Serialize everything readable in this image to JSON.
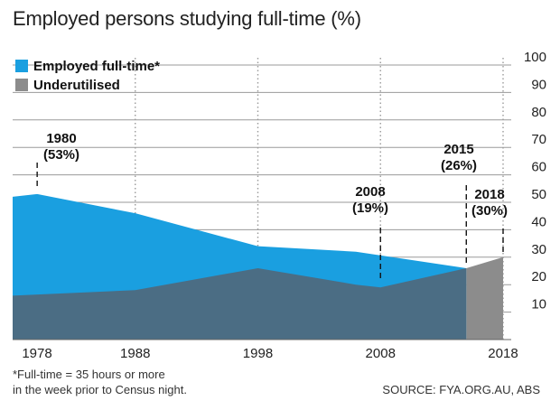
{
  "title": "Employed persons studying full-time (%)",
  "footnote": [
    "*Full-time = 35 hours or more",
    "in the week prior to Census night."
  ],
  "source": "SOURCE: FYA.ORG.AU, ABS",
  "chart_data": {
    "type": "area",
    "title": "Employed persons studying full-time (%)",
    "ylim": [
      0,
      100
    ],
    "yticks": [
      10,
      20,
      30,
      40,
      50,
      60,
      70,
      80,
      90,
      100
    ],
    "xticks": [
      1978,
      1988,
      1998,
      2008,
      2018
    ],
    "xlim": [
      1978,
      2018
    ],
    "grid": true,
    "legend": "top-left",
    "series": [
      {
        "name": "Employed full-time*",
        "color": "#1a9fe0",
        "x": [
          1978,
          1980,
          1988,
          1998,
          2006,
          2015
        ],
        "y": [
          52,
          53,
          46,
          34,
          32,
          26
        ]
      },
      {
        "name": "Underutilised",
        "color": "#8c8c8c",
        "x": [
          2015,
          2018
        ],
        "y": [
          26,
          30
        ]
      }
    ],
    "underlay": {
      "color": "#4b6d84",
      "x": [
        1978,
        1988,
        1998,
        2006,
        2008,
        2015
      ],
      "y": [
        16,
        18,
        26,
        20,
        19,
        26
      ]
    },
    "annotations": [
      {
        "x": 1980,
        "label": [
          "1980",
          "(53%)"
        ]
      },
      {
        "x": 2008,
        "label": [
          "2008",
          "(19%)"
        ]
      },
      {
        "x": 2015,
        "label": [
          "2015",
          "(26%)"
        ]
      },
      {
        "x": 2018,
        "label": [
          "2018",
          "(30%)"
        ]
      }
    ]
  }
}
